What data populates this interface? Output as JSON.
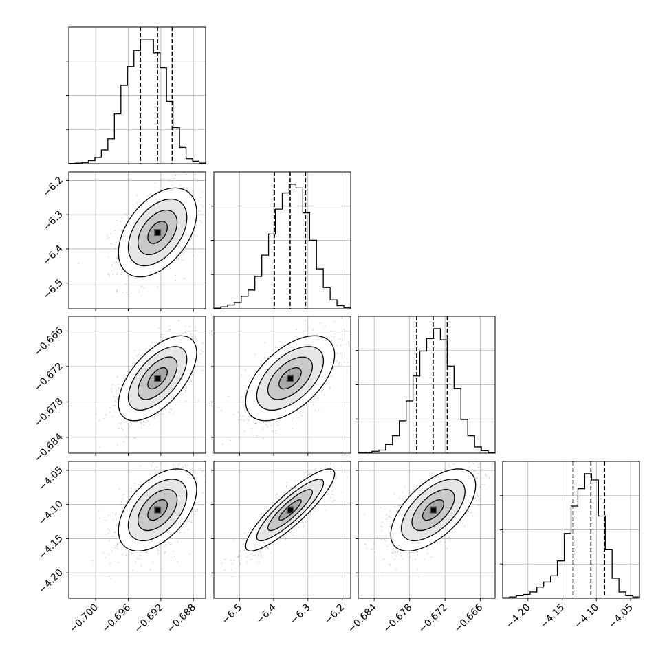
{
  "chart_data": {
    "type": "corner",
    "parameters": [
      {
        "ticks": [
          -0.7,
          -0.696,
          -0.692,
          -0.688
        ],
        "tick_labels": [
          "−0.700",
          "−0.696",
          "−0.692",
          "−0.688"
        ],
        "range": [
          -0.7033,
          -0.6865
        ],
        "quantiles": [
          -0.6945,
          -0.6924,
          -0.6906
        ],
        "hist": [
          0.2,
          0.5,
          1,
          2.5,
          5,
          11,
          20,
          40,
          63,
          78,
          91,
          100,
          100,
          89,
          77,
          50,
          29,
          13,
          4,
          2,
          0.5
        ]
      },
      {
        "ticks": [
          -6.5,
          -6.4,
          -6.3,
          -6.2
        ],
        "tick_labels": [
          "−6.5",
          "−6.4",
          "−6.3",
          "−6.2"
        ],
        "range": [
          -6.575,
          -6.175
        ],
        "quantiles": [
          -6.398,
          -6.352,
          -6.307
        ],
        "hist": [
          0.5,
          1.5,
          3,
          5,
          10,
          15,
          26,
          43,
          60,
          80,
          93,
          100,
          97,
          77,
          55,
          32,
          17,
          7,
          2.5,
          1
        ]
      },
      {
        "ticks": [
          -0.684,
          -0.678,
          -0.672,
          -0.666
        ],
        "tick_labels": [
          "−0.684",
          "−0.678",
          "−0.672",
          "−0.666"
        ],
        "range": [
          -0.6867,
          -0.6635
        ],
        "quantiles": [
          -0.6768,
          -0.674,
          -0.6716
        ],
        "hist": [
          0.2,
          0.5,
          1.5,
          2.5,
          7,
          14,
          26,
          42,
          62,
          82,
          92,
          100,
          91,
          70,
          52,
          27,
          14,
          5,
          2,
          0.5
        ]
      },
      {
        "ticks": [
          -4.2,
          -4.15,
          -4.1,
          -4.05
        ],
        "tick_labels": [
          "−4.20",
          "−4.15",
          "−4.10",
          "−4.05"
        ],
        "range": [
          -4.237,
          -4.037
        ],
        "quantiles": [
          -4.134,
          -4.108,
          -4.088
        ],
        "hist": [
          0.5,
          1,
          2,
          3,
          5,
          9,
          13,
          18,
          30,
          52,
          74,
          88,
          100,
          95,
          66,
          39,
          16,
          5,
          2,
          1
        ]
      }
    ],
    "pairs": [
      {
        "x": 0,
        "y": 1,
        "center": [
          -0.6924,
          -6.352
        ],
        "sigma": [
          0.0024,
          0.065
        ],
        "rho": 0.45
      },
      {
        "x": 0,
        "y": 2,
        "center": [
          -0.6924,
          -0.674
        ],
        "sigma": [
          0.0024,
          0.0036
        ],
        "rho": 0.6
      },
      {
        "x": 1,
        "y": 2,
        "center": [
          -6.352,
          -0.674
        ],
        "sigma": [
          0.065,
          0.0036
        ],
        "rho": 0.55
      },
      {
        "x": 0,
        "y": 3,
        "center": [
          -0.6924,
          -4.108
        ],
        "sigma": [
          0.0024,
          0.03
        ],
        "rho": 0.5
      },
      {
        "x": 1,
        "y": 3,
        "center": [
          -6.352,
          -4.108
        ],
        "sigma": [
          0.065,
          0.03
        ],
        "rho": 0.88
      },
      {
        "x": 2,
        "y": 3,
        "center": [
          -0.674,
          -4.108
        ],
        "sigma": [
          0.0036,
          0.03
        ],
        "rho": 0.6
      }
    ],
    "contour_sigma_levels": [
      0.5,
      1.0,
      1.5,
      2.0
    ],
    "grid": true,
    "colors": {
      "points": "#7a7a7a",
      "lines": "#000000",
      "grid": "#b0b0b0"
    }
  }
}
